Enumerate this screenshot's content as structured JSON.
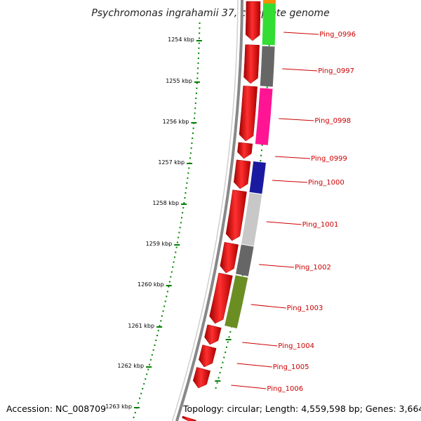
{
  "title": "Psychromonas ingrahamii 37, complete genome",
  "footer": {
    "accession": "Accession: NC_008709",
    "topology": "Topology: circular; Length: 4,559,598 bp; Genes: 3,664"
  },
  "ruler": {
    "unit": "kbp",
    "ticks": [
      "1254 kbp",
      "1255 kbp",
      "1256 kbp",
      "1257 kbp",
      "1258 kbp",
      "1259 kbp",
      "1260 kbp",
      "1261 kbp",
      "1262 kbp",
      "1263 kbp"
    ],
    "color": "#008000"
  },
  "genes": [
    {
      "id": "Ping_0996",
      "color": "#33dd33"
    },
    {
      "id": "Ping_0997",
      "color": "#666666"
    },
    {
      "id": "Ping_0998",
      "color": "#ff1493"
    },
    {
      "id": "Ping_0999",
      "color": "#ffffff"
    },
    {
      "id": "Ping_1000",
      "color": "#1a1aa0"
    },
    {
      "id": "Ping_1001",
      "color": "#c8c8c8"
    },
    {
      "id": "Ping_1002",
      "color": "#666666"
    },
    {
      "id": "Ping_1003",
      "color": "#6b8e23"
    },
    {
      "id": "Ping_1004",
      "color": "#ffffff"
    },
    {
      "id": "Ping_1005",
      "color": "#ffffff"
    },
    {
      "id": "Ping_1006",
      "color": "#ffffff"
    }
  ],
  "colors": {
    "backbone": "#888888",
    "strand_arrows": "#ff0000",
    "label": "#cc0000",
    "orange_feature": "#ff8c00"
  }
}
